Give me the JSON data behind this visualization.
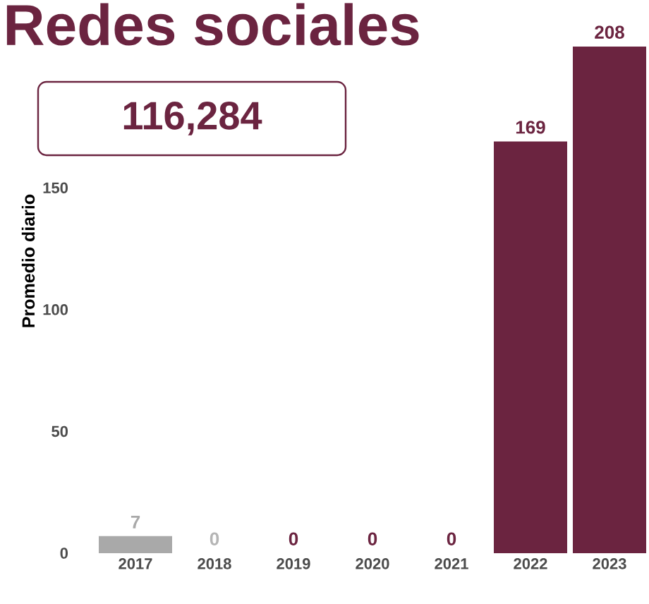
{
  "chart_data": {
    "type": "bar",
    "title": "Redes sociales",
    "annotations": [
      "116,284"
    ],
    "ylabel": "Promedio diario",
    "categories": [
      "2017",
      "2018",
      "2019",
      "2020",
      "2021",
      "2022",
      "2023"
    ],
    "values": [
      7,
      0,
      0,
      0,
      0,
      169,
      208
    ],
    "colors": [
      "#a9a9a9",
      "#b5b5b5",
      "#6b2440",
      "#6b2440",
      "#6b2440",
      "#6b2440",
      "#6b2440"
    ],
    "ylim": [
      0,
      208
    ],
    "yticks": [
      0,
      50,
      100,
      150
    ],
    "data_labels": true
  }
}
